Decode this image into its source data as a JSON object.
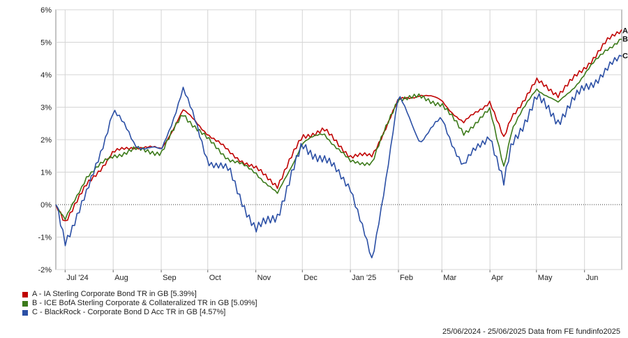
{
  "chart_data": {
    "type": "line",
    "title": "",
    "xlabel": "",
    "ylabel": "",
    "ylim": [
      -2,
      6
    ],
    "y_ticks": [
      "-2%",
      "-1%",
      "0%",
      "1%",
      "2%",
      "3%",
      "4%",
      "5%",
      "6%"
    ],
    "x_ticks": [
      "Jul '24",
      "Aug",
      "Sep",
      "Oct",
      "Nov",
      "Dec",
      "Jan '25",
      "Feb",
      "Mar",
      "Apr",
      "May",
      "Jun"
    ],
    "x_dates": [
      "2024-06-25",
      "2024-07-01",
      "2024-07-15",
      "2024-08-01",
      "2024-08-15",
      "2024-09-01",
      "2024-09-15",
      "2024-10-01",
      "2024-10-15",
      "2024-11-01",
      "2024-11-15",
      "2024-12-01",
      "2024-12-15",
      "2025-01-01",
      "2025-01-15",
      "2025-02-01",
      "2025-02-15",
      "2025-03-01",
      "2025-03-15",
      "2025-04-01",
      "2025-04-10",
      "2025-04-15",
      "2025-05-01",
      "2025-05-15",
      "2025-06-01",
      "2025-06-15",
      "2025-06-25"
    ],
    "grid": true,
    "zero_line": true,
    "legend_position": "bottom-left",
    "series": [
      {
        "name": "A - IA Sterling Corporate Bond TR in GB [5.39%]",
        "label": "A",
        "color": "#c00000",
        "values": [
          0.0,
          -0.5,
          0.6,
          1.6,
          1.8,
          1.7,
          2.9,
          2.2,
          1.6,
          1.1,
          0.6,
          2.1,
          2.3,
          1.5,
          1.5,
          3.2,
          3.4,
          3.2,
          2.5,
          3.2,
          2.0,
          2.7,
          3.8,
          3.4,
          4.2,
          5.0,
          5.39
        ]
      },
      {
        "name": "B - ICE BofA Sterling Corporate & Collateralized TR in GB [5.09%]",
        "label": "B",
        "color": "#3c7a1a",
        "values": [
          0.0,
          -0.5,
          0.9,
          1.5,
          1.7,
          1.6,
          2.8,
          2.0,
          1.4,
          1.0,
          0.3,
          1.9,
          2.2,
          1.3,
          1.3,
          3.3,
          3.3,
          3.1,
          2.2,
          2.9,
          1.2,
          2.3,
          3.6,
          3.1,
          4.0,
          4.8,
          5.09
        ]
      },
      {
        "name": "C - BlackRock - Corporate Bond D Acc TR in GB [4.57%]",
        "label": "C",
        "color": "#2b4fa5",
        "values": [
          0.0,
          -1.1,
          0.3,
          2.9,
          1.9,
          1.6,
          3.6,
          1.4,
          1.0,
          -0.8,
          -0.3,
          1.8,
          1.4,
          0.6,
          -1.8,
          3.3,
          2.0,
          2.6,
          1.2,
          2.2,
          0.6,
          1.8,
          3.3,
          2.6,
          3.6,
          4.1,
          4.57
        ]
      }
    ]
  },
  "footer": {
    "text": "25/06/2024 - 25/06/2025 Data from FE fundinfo2025"
  }
}
